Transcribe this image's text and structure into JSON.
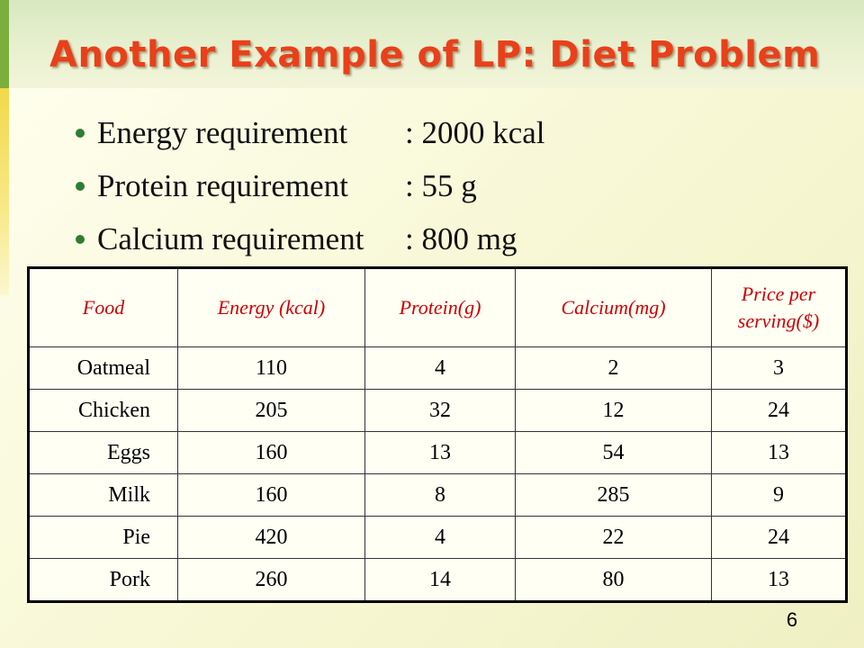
{
  "slide": {
    "title": "Another Example of LP: Diet Problem",
    "page_number": "6"
  },
  "bullets": [
    {
      "label": "Energy requirement",
      "value": ": 2000 kcal"
    },
    {
      "label": "Protein requirement",
      "value": ": 55 g"
    },
    {
      "label": "Calcium requirement",
      "value": ": 800 mg"
    }
  ],
  "table": {
    "headers": [
      "Food",
      "Energy (kcal)",
      "Protein(g)",
      "Calcium(mg)",
      "Price per serving($)"
    ],
    "rows": [
      [
        "Oatmeal",
        "110",
        "4",
        "2",
        "3"
      ],
      [
        "Chicken",
        "205",
        "32",
        "12",
        "24"
      ],
      [
        "Eggs",
        "160",
        "13",
        "54",
        "13"
      ],
      [
        "Milk",
        "160",
        "8",
        "285",
        "9"
      ],
      [
        "Pie",
        "420",
        "4",
        "22",
        "24"
      ],
      [
        "Pork",
        "260",
        "14",
        "80",
        "13"
      ]
    ]
  },
  "colors": {
    "title": "#e8401a",
    "header_text": "#cc0000",
    "bullet": "#2e7d32",
    "accent_bar": "#7cae3e"
  }
}
